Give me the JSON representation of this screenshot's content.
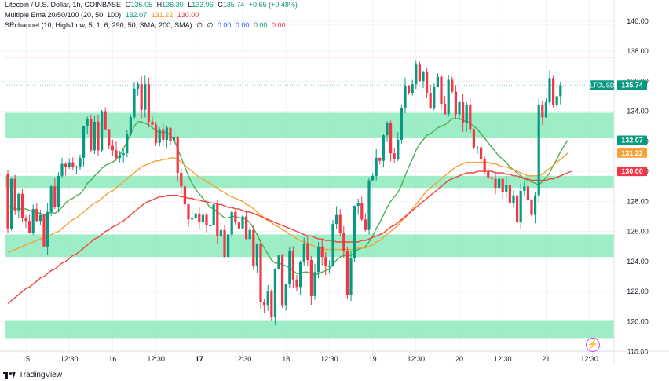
{
  "legend": {
    "symbol": "Litecoin / U.S. Dollar, 1h, COINBASE",
    "o_label": "O",
    "o": "135.05",
    "h_label": "H",
    "h": "136.30",
    "l_label": "L",
    "l": "133.96",
    "c_label": "C",
    "c": "135.74",
    "change": "+0.65 (+0.48%)",
    "ema_name": "Multiple Ema 20/50/100 (20, 50, 100)",
    "ema_values": [
      "132.07",
      "131.22",
      "130.00"
    ],
    "sr_name": "SRchannel (10, High/Low, 5, 1, 6, 290, 50, SMA, 200, SMA)",
    "sr_symbols": [
      "∅",
      "∅"
    ],
    "sr_values": [
      "0.00",
      "0.00",
      "0.00",
      "0.00"
    ]
  },
  "brand": "TradingView",
  "colors": {
    "up": "#089981",
    "down": "#f23645",
    "ema20": "#4caf50",
    "ema50": "#f7a035",
    "ema100": "#f0433a",
    "zone": "#7ce8b3"
  },
  "chart_data": {
    "type": "candlestick",
    "symbol": "LTCUSD",
    "y_range": [
      117.2,
      141.4
    ],
    "y_ticks": [
      118,
      120,
      122,
      124,
      126,
      128,
      130,
      132,
      134,
      136,
      138,
      140
    ],
    "y_tick_labels": [
      "118.00",
      "120.00",
      "122.00",
      "124.00",
      "126.00",
      "128.00",
      "130.00",
      "132.00",
      "134.00",
      "136.00",
      "138.00",
      "140.00"
    ],
    "x_ticks": [
      {
        "i": 5,
        "label": "15",
        "bold": false
      },
      {
        "i": 17,
        "label": "12:30",
        "bold": false
      },
      {
        "i": 29,
        "label": "16",
        "bold": false
      },
      {
        "i": 41,
        "label": "12:30",
        "bold": false
      },
      {
        "i": 53,
        "label": "17",
        "bold": true
      },
      {
        "i": 65,
        "label": "12:30",
        "bold": false
      },
      {
        "i": 77,
        "label": "18",
        "bold": false
      },
      {
        "i": 89,
        "label": "12:30",
        "bold": false
      },
      {
        "i": 101,
        "label": "19",
        "bold": false
      },
      {
        "i": 113,
        "label": "12:30",
        "bold": false
      },
      {
        "i": 125,
        "label": "20",
        "bold": false
      },
      {
        "i": 137,
        "label": "12:30",
        "bold": false
      },
      {
        "i": 149,
        "label": "21",
        "bold": false
      },
      {
        "i": 161,
        "label": "12:30",
        "bold": false
      }
    ],
    "zones": [
      [
        132.2,
        133.9
      ],
      [
        128.9,
        129.7
      ],
      [
        124.3,
        125.8
      ],
      [
        118.9,
        120.1
      ]
    ],
    "levels": [
      {
        "price": 139.8,
        "color": "#f8b4b4"
      },
      {
        "price": 137.6,
        "color": "#f8b4b4"
      },
      {
        "price": 135.74,
        "color": "#7fd1c1",
        "dotted": true
      }
    ],
    "price_labels": [
      {
        "price": 135.74,
        "label": "LTCUSD",
        "value": "135.74",
        "bg": "#089981"
      },
      {
        "price": 132.07,
        "value": "132.07",
        "bg": "#089981"
      },
      {
        "price": 131.22,
        "value": "131.22",
        "bg": "#f7a035"
      },
      {
        "price": 130.0,
        "value": "130.00",
        "bg": "#f23645"
      }
    ],
    "candles": [
      [
        129.8,
        126.2
      ],
      [
        126.2,
        129.5
      ],
      [
        129.5,
        127.4
      ],
      [
        127.4,
        128.5
      ],
      [
        128.5,
        126.9
      ],
      [
        126.9,
        126.7
      ],
      [
        126.7,
        125.9
      ],
      [
        125.9,
        127.5
      ],
      [
        127.5,
        126.7
      ],
      [
        126.7,
        127.1
      ],
      [
        127.1,
        125.0
      ],
      [
        125.0,
        127.3
      ],
      [
        127.3,
        129.0
      ],
      [
        129.0,
        127.6
      ],
      [
        127.6,
        129.7
      ],
      [
        129.7,
        130.5
      ],
      [
        130.5,
        130.3
      ],
      [
        130.3,
        130.6
      ],
      [
        130.6,
        130.3
      ],
      [
        130.3,
        130.3
      ],
      [
        130.3,
        130.9
      ],
      [
        130.9,
        133.0
      ],
      [
        133.0,
        133.5
      ],
      [
        133.5,
        131.4
      ],
      [
        131.4,
        133.3
      ],
      [
        133.3,
        131.4
      ],
      [
        131.4,
        134.0
      ],
      [
        134.0,
        132.8
      ],
      [
        132.8,
        131.7
      ],
      [
        131.7,
        131.4
      ],
      [
        131.4,
        130.9
      ],
      [
        130.9,
        131.1
      ],
      [
        131.1,
        131.2
      ],
      [
        131.2,
        132.5
      ],
      [
        132.5,
        133.6
      ],
      [
        133.6,
        135.5
      ],
      [
        135.5,
        135.8
      ],
      [
        135.8,
        134.1
      ],
      [
        134.1,
        135.8
      ],
      [
        135.8,
        133.3
      ],
      [
        133.3,
        133.1
      ],
      [
        133.1,
        131.9
      ],
      [
        131.9,
        132.8
      ],
      [
        132.8,
        132.1
      ],
      [
        132.1,
        132.9
      ],
      [
        132.9,
        132.0
      ],
      [
        132.0,
        132.3
      ],
      [
        132.3,
        129.9
      ],
      [
        129.9,
        129.0
      ],
      [
        129.0,
        127.8
      ],
      [
        127.8,
        126.8
      ],
      [
        126.8,
        126.9
      ],
      [
        126.9,
        127.2
      ],
      [
        127.2,
        126.6
      ],
      [
        126.6,
        127.1
      ],
      [
        127.1,
        126.4
      ],
      [
        126.4,
        126.4
      ],
      [
        126.4,
        127.8
      ],
      [
        127.8,
        125.7
      ],
      [
        125.7,
        126.1
      ],
      [
        126.1,
        124.3
      ],
      [
        124.3,
        125.8
      ],
      [
        125.8,
        127.3
      ],
      [
        127.3,
        126.6
      ],
      [
        126.6,
        126.2
      ],
      [
        126.2,
        127.0
      ],
      [
        127.0,
        125.5
      ],
      [
        125.5,
        126.1
      ],
      [
        126.1,
        123.7
      ],
      [
        123.7,
        125.2
      ],
      [
        125.2,
        121.3
      ],
      [
        121.3,
        121.1
      ],
      [
        121.1,
        122.0
      ],
      [
        122.0,
        120.3
      ],
      [
        120.3,
        123.5
      ],
      [
        123.5,
        124.4
      ],
      [
        124.4,
        121.1
      ],
      [
        121.1,
        122.5
      ],
      [
        122.5,
        124.7
      ],
      [
        124.7,
        122.8
      ],
      [
        122.8,
        122.3
      ],
      [
        122.3,
        124.0
      ],
      [
        124.0,
        125.2
      ],
      [
        125.2,
        124.1
      ],
      [
        124.1,
        121.7
      ],
      [
        121.7,
        123.3
      ],
      [
        123.3,
        125.0
      ],
      [
        125.0,
        124.3
      ],
      [
        124.3,
        123.7
      ],
      [
        123.7,
        123.7
      ],
      [
        123.7,
        126.5
      ],
      [
        126.5,
        127.1
      ],
      [
        127.1,
        125.9
      ],
      [
        125.9,
        124.7
      ],
      [
        124.7,
        121.8
      ],
      [
        121.8,
        124.2
      ],
      [
        124.2,
        127.7
      ],
      [
        127.7,
        127.9
      ],
      [
        127.9,
        126.8
      ],
      [
        126.8,
        126.1
      ],
      [
        126.1,
        129.4
      ],
      [
        129.4,
        129.7
      ],
      [
        129.7,
        130.9
      ],
      [
        130.9,
        130.7
      ],
      [
        130.7,
        132.4
      ],
      [
        132.4,
        133.2
      ],
      [
        133.2,
        131.2
      ],
      [
        131.2,
        130.8
      ],
      [
        130.8,
        132.1
      ],
      [
        132.1,
        134.2
      ],
      [
        134.2,
        135.7
      ],
      [
        135.7,
        135.2
      ],
      [
        135.2,
        135.8
      ],
      [
        135.8,
        137.1
      ],
      [
        137.1,
        136.0
      ],
      [
        136.0,
        136.6
      ],
      [
        136.6,
        135.2
      ],
      [
        135.2,
        134.2
      ],
      [
        134.2,
        135.6
      ],
      [
        135.6,
        136.3
      ],
      [
        136.3,
        134.5
      ],
      [
        134.5,
        133.8
      ],
      [
        133.8,
        136.1
      ],
      [
        136.1,
        135.3
      ],
      [
        135.3,
        133.8
      ],
      [
        133.8,
        134.6
      ],
      [
        134.6,
        133.2
      ],
      [
        133.2,
        134.4
      ],
      [
        134.4,
        132.8
      ],
      [
        132.8,
        131.6
      ],
      [
        131.6,
        131.6
      ],
      [
        131.6,
        130.8
      ],
      [
        130.8,
        130.0
      ],
      [
        130.0,
        129.6
      ],
      [
        129.6,
        129.5
      ],
      [
        129.5,
        128.9
      ],
      [
        128.9,
        129.5
      ],
      [
        129.5,
        128.6
      ],
      [
        128.6,
        129.1
      ],
      [
        129.1,
        127.9
      ],
      [
        127.9,
        128.4
      ],
      [
        128.4,
        126.6
      ],
      [
        126.6,
        128.7
      ],
      [
        128.7,
        129.0
      ],
      [
        129.0,
        128.1
      ],
      [
        128.1,
        127.1
      ],
      [
        127.1,
        128.4
      ],
      [
        128.4,
        134.4
      ],
      [
        134.4,
        133.6
      ],
      [
        133.6,
        134.6
      ],
      [
        134.6,
        136.2
      ],
      [
        136.2,
        134.4
      ],
      [
        134.4,
        135.0
      ],
      [
        135.0,
        135.74
      ]
    ],
    "series": [
      {
        "name": "EMA 20",
        "color": "#4caf50",
        "values": [
          127.7,
          127.6,
          127.5,
          127.5,
          127.5,
          127.5,
          127.4,
          127.3,
          127.3,
          127.2,
          127.1,
          127.1,
          127.3,
          127.2,
          127.4,
          127.6,
          127.9,
          128.1,
          128.2,
          128.4,
          128.5,
          128.8,
          129.2,
          129.4,
          129.7,
          129.9,
          130.2,
          130.4,
          130.5,
          130.6,
          130.8,
          131.1,
          131.5,
          132.0,
          132.5,
          133.0,
          133.3,
          133.3,
          133.2,
          133.1,
          132.9,
          132.7,
          132.6,
          132.6,
          132.6,
          132.4,
          132.1,
          131.5,
          130.9,
          130.3,
          129.7,
          129.2,
          128.8,
          128.5,
          128.2,
          127.9,
          127.6,
          127.5,
          127.3,
          127.1,
          126.9,
          126.9,
          127.0,
          127.0,
          126.9,
          126.9,
          126.8,
          126.6,
          126.2,
          125.8,
          125.3,
          124.9,
          124.5,
          124.1,
          123.9,
          123.9,
          123.8,
          123.7,
          123.6,
          123.4,
          123.2,
          123.2,
          123.3,
          123.3,
          123.2,
          123.1,
          123.2,
          123.3,
          123.4,
          123.5,
          123.8,
          124.1,
          124.3,
          124.4,
          124.4,
          124.4,
          124.6,
          124.8,
          124.9,
          125.0,
          125.3,
          125.7,
          126.2,
          126.6,
          127.1,
          127.6,
          128.0,
          128.3,
          128.6,
          129.1,
          129.7,
          130.3,
          130.8,
          131.4,
          131.8,
          132.1,
          132.4,
          132.5,
          132.7,
          132.9,
          133.0,
          133.1,
          133.3,
          133.5,
          133.5,
          133.5,
          133.4,
          133.3,
          133.2,
          133.0,
          132.8,
          132.5,
          132.2,
          131.9,
          131.6,
          131.3,
          131.0,
          130.8,
          130.6,
          130.3,
          130.1,
          129.9,
          129.7,
          129.5,
          129.4,
          129.3,
          129.2,
          129.1,
          129.3,
          129.6,
          129.9,
          130.4,
          130.8,
          131.3,
          131.7,
          132.07
        ]
      },
      {
        "name": "EMA 50",
        "color": "#f7a035",
        "values": [
          124.6,
          124.7,
          124.8,
          124.9,
          125.0,
          125.1,
          125.2,
          125.3,
          125.4,
          125.5,
          125.6,
          125.7,
          125.8,
          125.9,
          126.0,
          126.2,
          126.4,
          126.6,
          126.8,
          126.9,
          127.1,
          127.3,
          127.5,
          127.7,
          127.9,
          128.0,
          128.2,
          128.4,
          128.6,
          128.7,
          128.9,
          129.1,
          129.3,
          129.5,
          129.7,
          129.9,
          130.1,
          130.3,
          130.4,
          130.5,
          130.6,
          130.7,
          130.7,
          130.8,
          130.8,
          130.9,
          130.9,
          130.8,
          130.6,
          130.4,
          130.2,
          130.0,
          129.8,
          129.6,
          129.5,
          129.3,
          129.2,
          129.0,
          128.9,
          128.7,
          128.6,
          128.4,
          128.3,
          128.2,
          128.1,
          128.0,
          127.8,
          127.7,
          127.5,
          127.3,
          127.1,
          126.9,
          126.7,
          126.6,
          126.4,
          126.3,
          126.1,
          126.0,
          125.8,
          125.7,
          125.5,
          125.4,
          125.3,
          125.2,
          125.1,
          125.0,
          124.9,
          124.9,
          124.8,
          124.8,
          124.8,
          124.8,
          124.8,
          124.8,
          124.8,
          124.8,
          124.8,
          124.9,
          124.9,
          124.9,
          125.0,
          125.1,
          125.3,
          125.4,
          125.6,
          125.8,
          126.0,
          126.2,
          126.4,
          126.7,
          126.9,
          127.2,
          127.5,
          127.8,
          128.1,
          128.4,
          128.7,
          128.9,
          129.1,
          129.3,
          129.5,
          129.7,
          129.9,
          130.1,
          130.3,
          130.4,
          130.5,
          130.6,
          130.6,
          130.6,
          130.6,
          130.6,
          130.6,
          130.6,
          130.5,
          130.5,
          130.4,
          130.3,
          130.3,
          130.2,
          130.1,
          130.0,
          129.9,
          129.8,
          129.7,
          129.7,
          129.7,
          129.7,
          129.8,
          130.0,
          130.2,
          130.4,
          130.6,
          130.8,
          131.0,
          131.22
        ]
      },
      {
        "name": "EMA 100",
        "color": "#f0433a",
        "values": [
          121.2,
          121.4,
          121.6,
          121.8,
          122.0,
          122.2,
          122.3,
          122.5,
          122.7,
          122.9,
          123.0,
          123.2,
          123.4,
          123.5,
          123.7,
          123.9,
          124.0,
          124.2,
          124.4,
          124.5,
          124.7,
          124.9,
          125.1,
          125.3,
          125.5,
          125.6,
          125.8,
          126.0,
          126.1,
          126.3,
          126.4,
          126.6,
          126.7,
          126.9,
          127.1,
          127.3,
          127.5,
          127.7,
          127.9,
          128.0,
          128.1,
          128.2,
          128.3,
          128.3,
          128.4,
          128.4,
          128.4,
          128.4,
          128.3,
          128.3,
          128.2,
          128.2,
          128.1,
          128.1,
          128.0,
          128.0,
          127.9,
          127.9,
          127.8,
          127.8,
          127.7,
          127.6,
          127.6,
          127.5,
          127.5,
          127.4,
          127.3,
          127.3,
          127.2,
          127.1,
          127.0,
          126.9,
          126.8,
          126.7,
          126.6,
          126.5,
          126.4,
          126.3,
          126.2,
          126.1,
          126.0,
          125.9,
          125.8,
          125.7,
          125.7,
          125.6,
          125.5,
          125.5,
          125.4,
          125.4,
          125.4,
          125.3,
          125.3,
          125.3,
          125.3,
          125.3,
          125.3,
          125.3,
          125.4,
          125.4,
          125.5,
          125.6,
          125.7,
          125.8,
          125.9,
          126.1,
          126.3,
          126.4,
          126.6,
          126.8,
          127.0,
          127.2,
          127.4,
          127.6,
          127.8,
          128.0,
          128.2,
          128.4,
          128.6,
          128.8,
          129.0,
          129.2,
          129.4,
          129.5,
          129.6,
          129.7,
          129.8,
          129.9,
          129.9,
          129.9,
          130.0,
          130.0,
          130.0,
          130.0,
          130.0,
          129.9,
          129.9,
          129.9,
          129.8,
          129.8,
          129.7,
          129.7,
          129.6,
          129.5,
          129.5,
          129.4,
          129.4,
          129.4,
          129.4,
          129.4,
          129.5,
          129.5,
          129.6,
          129.7,
          129.8,
          129.9,
          130.0
        ]
      }
    ]
  }
}
